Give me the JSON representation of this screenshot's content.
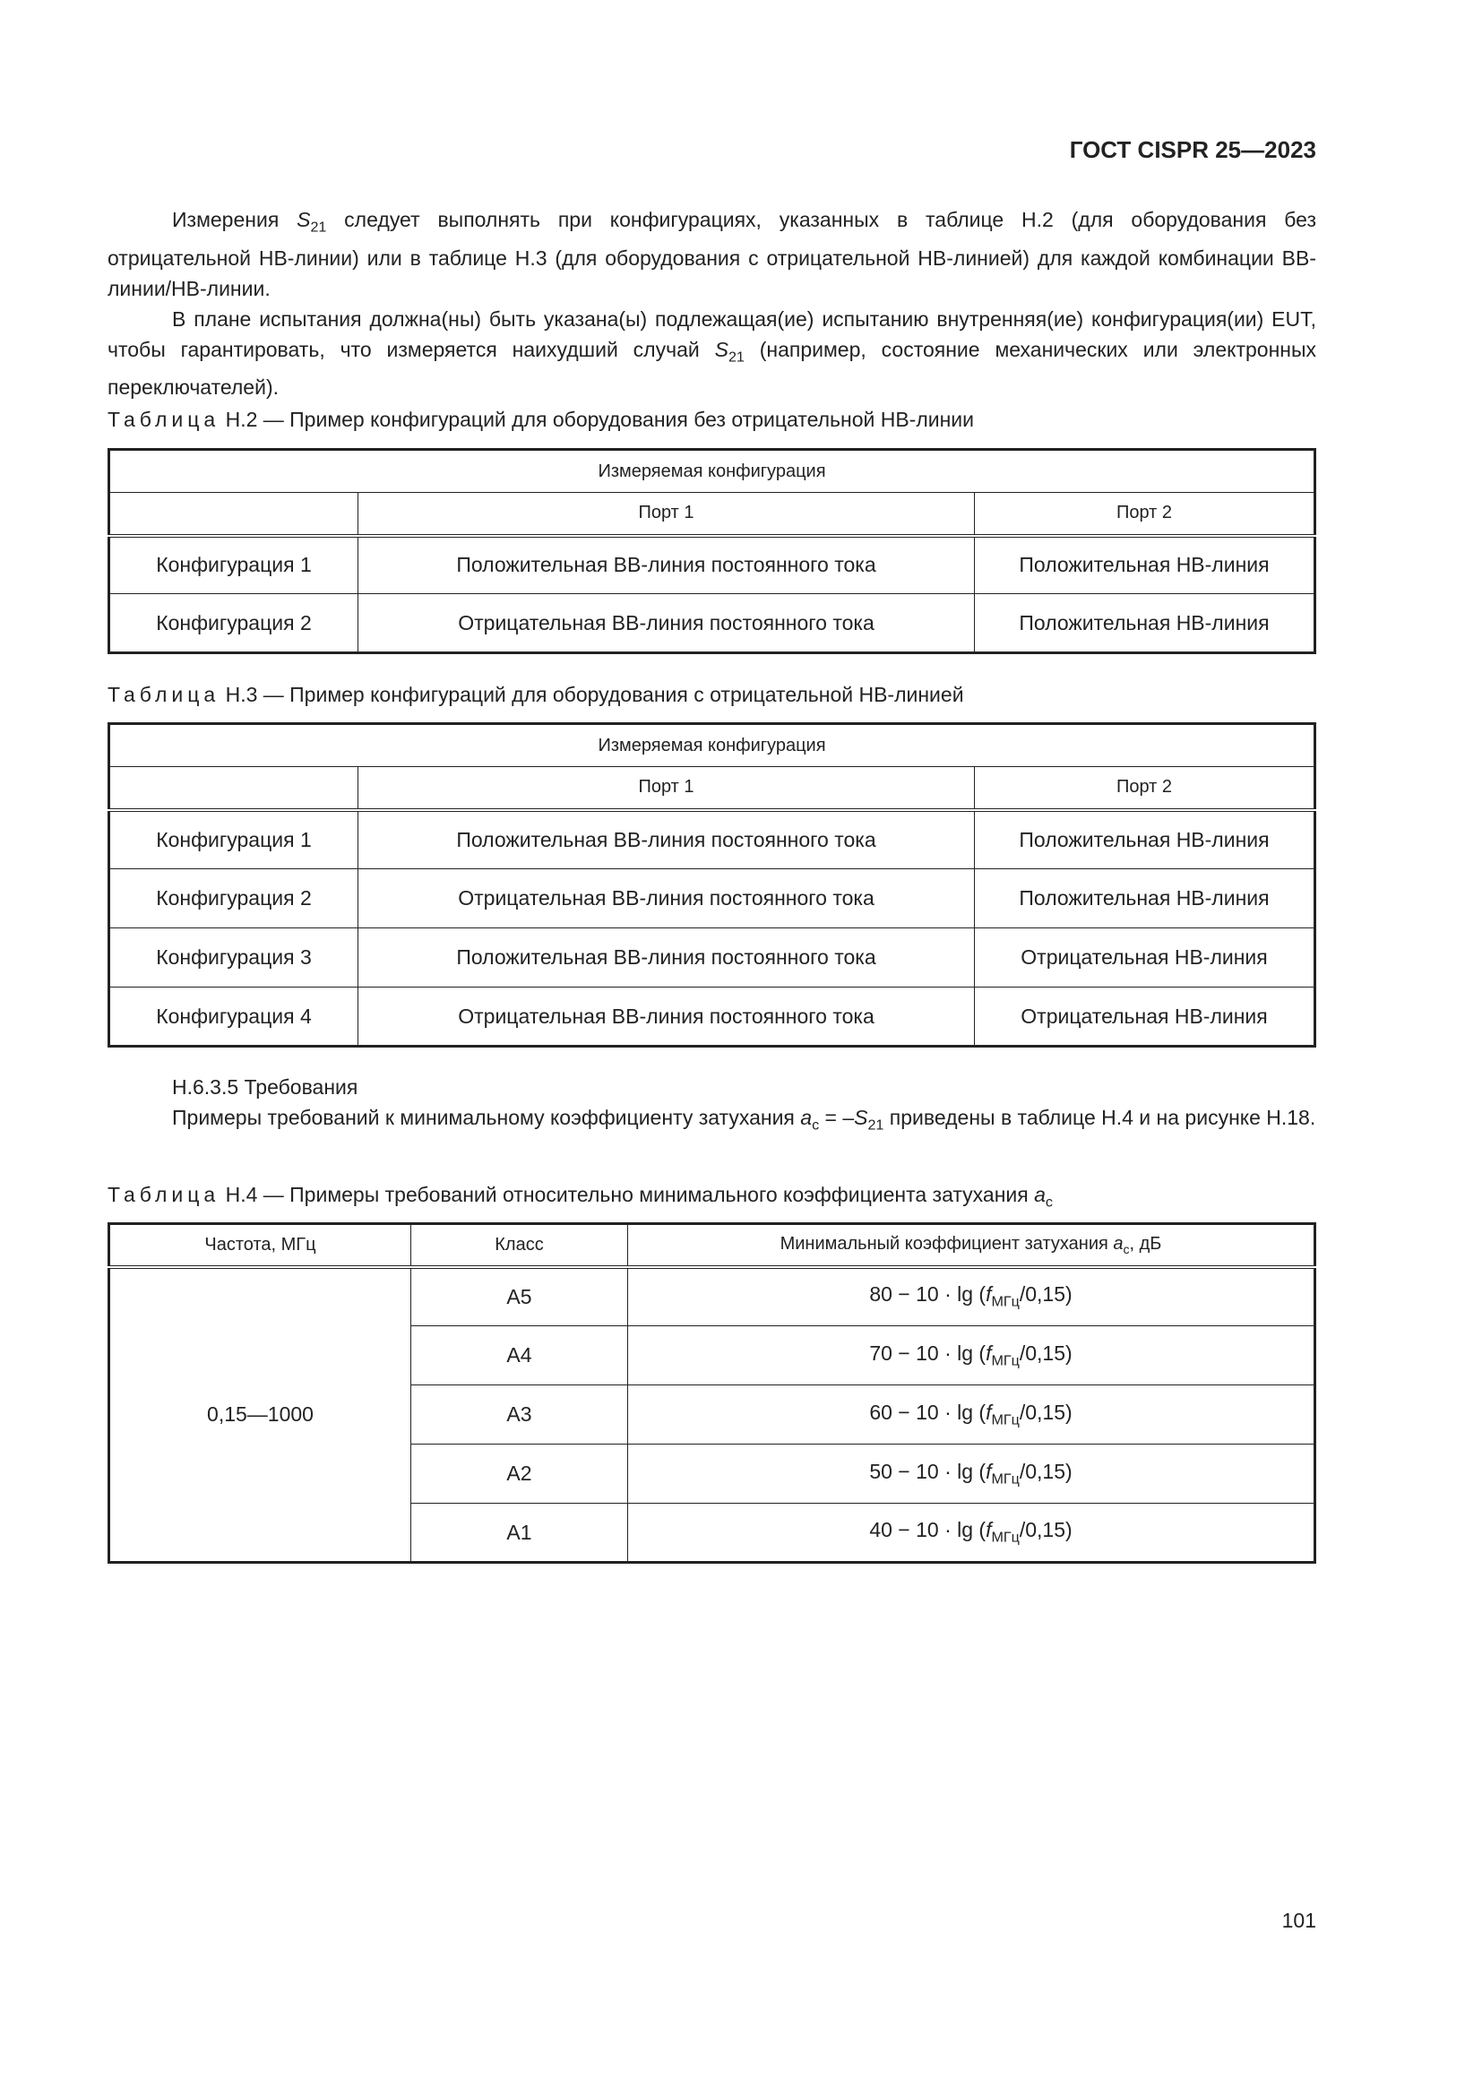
{
  "header": {
    "doc_id": "ГОСТ CISPR 25—2023"
  },
  "intro": {
    "p1_a": "Измерения ",
    "p1_s": "S",
    "p1_sub": "21",
    "p1_b": " следует выполнять при конфигурациях, указанных в таблице H.2 (для оборудования без отрицательной НВ-линии) или в таблице H.3 (для оборудования с отрицательной НВ-линией) для каждой комбинации ВВ-линии/НВ-линии.",
    "p2_a": "В плане испытания должна(ны) быть указана(ы) подлежащая(ие) испытанию внутренняя(ие) конфигурация(ии) EUT, чтобы гарантировать, что измеряется наихудший случай ",
    "p2_s": "S",
    "p2_sub": "21",
    "p2_b": " (например, состояние механических или электронных переключателей)."
  },
  "table_h2": {
    "caption_word": "Таблица",
    "caption": " H.2 — Пример конфигураций для оборудования без отрицательной НВ-линии",
    "group_header": "Измеряемая конфигурация",
    "columns": [
      "",
      "Порт 1",
      "Порт 2"
    ],
    "rows": [
      [
        "Конфигурация 1",
        "Положительная ВВ-линия постоянного тока",
        "Положительная НВ-линия"
      ],
      [
        "Конфигурация 2",
        "Отрицательная ВВ-линия постоянного тока",
        "Положительная НВ-линия"
      ]
    ]
  },
  "table_h3": {
    "caption_word": "Таблица",
    "caption": " H.3 — Пример конфигураций для оборудования с отрицательной НВ-линией",
    "group_header": "Измеряемая конфигурация",
    "columns": [
      "",
      "Порт 1",
      "Порт 2"
    ],
    "rows": [
      [
        "Конфигурация 1",
        "Положительная ВВ-линия постоянного тока",
        "Положительная НВ-линия"
      ],
      [
        "Конфигурация 2",
        "Отрицательная ВВ-линия постоянного тока",
        "Положительная НВ-линия"
      ],
      [
        "Конфигурация 3",
        "Положительная ВВ-линия постоянного тока",
        "Отрицательная НВ-линия"
      ],
      [
        "Конфигурация 4",
        "Отрицательная ВВ-линия постоянного тока",
        "Отрицательная НВ-линия"
      ]
    ]
  },
  "section": {
    "heading": "H.6.3.5 Требования",
    "text_a": "Примеры требований к минимальному коэффициенту затухания ",
    "a": "a",
    "a_sub": "c",
    "eq": " = –",
    "s": "S",
    "s_sub": "21",
    "text_b": " приведены в таблице H.4 и на рисунке H.18."
  },
  "table_h4": {
    "caption_word": "Таблица",
    "caption": " H.4 — Примеры требований относительно минимального коэффициента затухания ",
    "caption_a": "a",
    "caption_sub": "c",
    "col_freq": "Частота, МГц",
    "col_class": "Класс",
    "col_min_a": "Минимальный коэффициент затухания ",
    "col_min_var": "a",
    "col_min_sub": "c",
    "col_min_b": ", дБ",
    "freq": "0,15—1000",
    "rows": [
      {
        "cls": "A5",
        "pre": "80 − 10 · lg (",
        "f": "f",
        "sub": "МГц",
        "post": "/0,15)"
      },
      {
        "cls": "A4",
        "pre": "70 − 10 · lg (",
        "f": "f",
        "sub": "МГц",
        "post": "/0,15)"
      },
      {
        "cls": "A3",
        "pre": "60 − 10 · lg (",
        "f": "f",
        "sub": "МГц",
        "post": "/0,15)"
      },
      {
        "cls": "A2",
        "pre": "50 − 10 · lg (",
        "f": "f",
        "sub": "МГц",
        "post": "/0,15)"
      },
      {
        "cls": "A1",
        "pre": "40 − 10 · lg (",
        "f": "f",
        "sub": "МГц",
        "post": "/0,15)"
      }
    ]
  },
  "page_number": "101"
}
